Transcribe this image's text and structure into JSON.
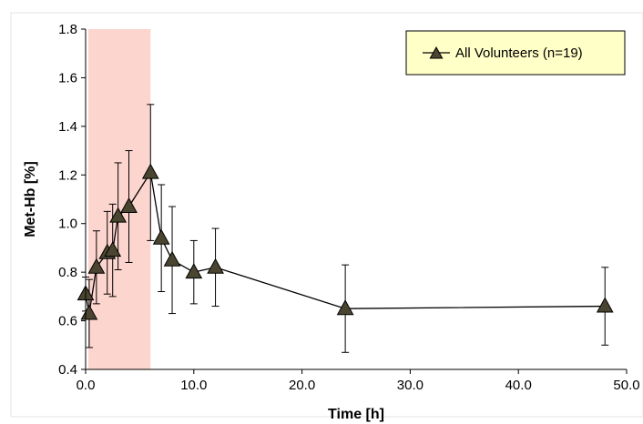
{
  "chart_data": {
    "type": "line",
    "xlabel": "Time [h]",
    "ylabel": "Met-Hb [%]",
    "xlim": [
      0,
      50
    ],
    "ylim": [
      0.4,
      1.8
    ],
    "x_ticks": [
      "0.0",
      "10.0",
      "20.0",
      "30.0",
      "40.0",
      "50.0"
    ],
    "y_ticks": [
      "0.4",
      "0.6",
      "0.8",
      "1.0",
      "1.2",
      "1.4",
      "1.6",
      "1.8"
    ],
    "shaded_region": {
      "x_start": 0.25,
      "x_end": 6,
      "color": "#fdd5cf"
    },
    "grid": false,
    "legend": {
      "position": "top-right",
      "background": "#ffffc8"
    },
    "series": [
      {
        "name": "All Volunteers (n=19)",
        "marker": "triangle",
        "marker_color": "#4a4530",
        "x": [
          0,
          0.33,
          1,
          2,
          2.5,
          3,
          4,
          6,
          7,
          8,
          10,
          12,
          24,
          48
        ],
        "y": [
          0.71,
          0.63,
          0.82,
          0.88,
          0.89,
          1.03,
          1.07,
          1.21,
          0.94,
          0.85,
          0.8,
          0.82,
          0.65,
          0.66
        ],
        "error": [
          0.07,
          0.14,
          0.15,
          0.17,
          0.19,
          0.22,
          0.23,
          0.28,
          0.22,
          0.22,
          0.13,
          0.16,
          0.18,
          0.16
        ]
      }
    ]
  }
}
